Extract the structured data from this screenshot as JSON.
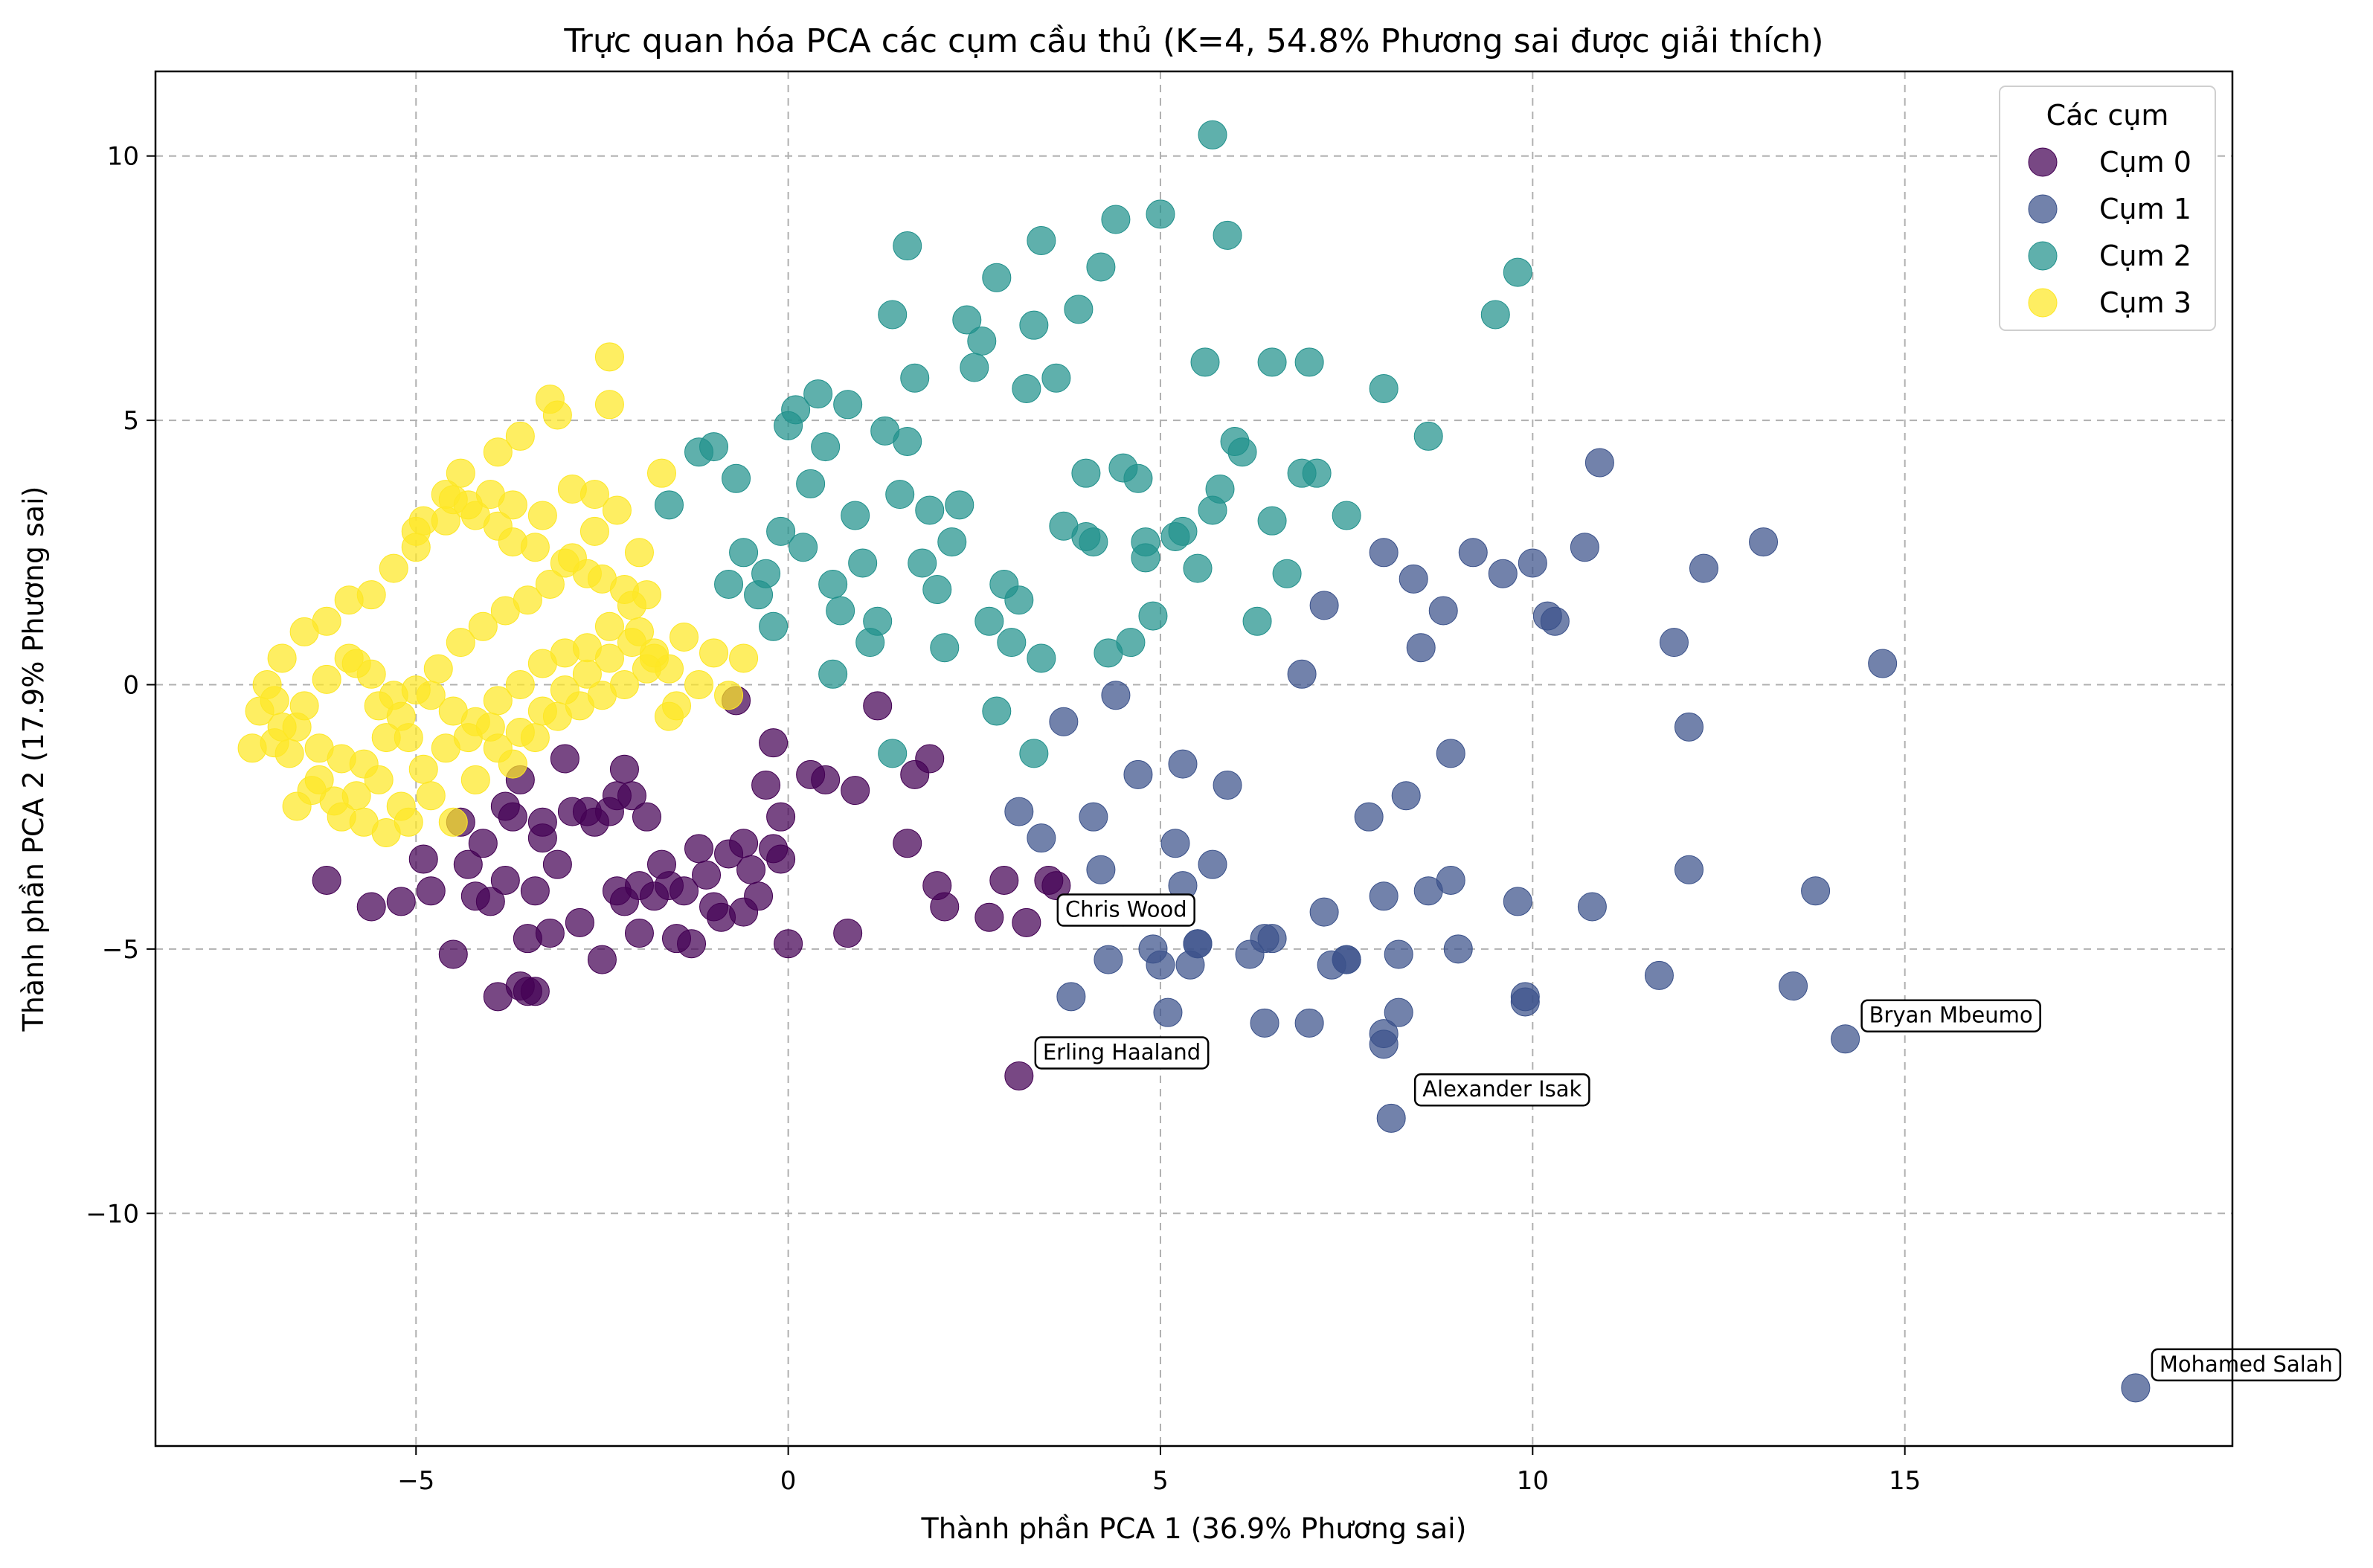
{
  "chart_data": {
    "type": "scatter",
    "title": "Trực quan hóa PCA các cụm cầu thủ (K=4, 54.8% Phương sai được giải thích)",
    "xlabel": "Thành phần PCA 1 (36.9% Phương sai)",
    "ylabel": "Thành phần PCA 2 (17.9% Phương sai)",
    "xlim": [
      -8.5,
      19.4
    ],
    "ylim": [
      -14.4,
      11.6
    ],
    "xticks": [
      -5,
      0,
      5,
      10,
      15
    ],
    "yticks": [
      -10,
      -5,
      0,
      5,
      10
    ],
    "xtick_labels": [
      "−5",
      "0",
      "5",
      "10",
      "15"
    ],
    "ytick_labels": [
      "−10",
      "−5",
      "0",
      "5",
      "10"
    ],
    "grid": true,
    "legend": {
      "title": "Các cụm",
      "placement": "top-right"
    },
    "series": [
      {
        "name": "Cụm 0",
        "color": "#440154",
        "x": [
          -6.2,
          -5.6,
          -5.2,
          -4.9,
          -4.8,
          -4.5,
          -4.4,
          -4.3,
          -4.2,
          -4.1,
          -4.0,
          -3.9,
          -3.8,
          -3.8,
          -3.7,
          -3.6,
          -3.5,
          -3.5,
          -3.4,
          -3.3,
          -3.3,
          -3.2,
          -3.1,
          -3.0,
          -2.9,
          -2.8,
          -2.7,
          -2.6,
          -2.5,
          -2.4,
          -2.3,
          -2.2,
          -2.2,
          -2.1,
          -2.0,
          -2.0,
          -1.9,
          -1.8,
          -1.7,
          -1.6,
          -1.5,
          -1.4,
          -1.3,
          -1.2,
          -1.1,
          -1.0,
          -0.9,
          -0.8,
          -0.7,
          -0.6,
          -0.5,
          -0.4,
          -0.3,
          -0.2,
          -0.2,
          -0.1,
          -0.1,
          0.0,
          0.3,
          0.5,
          0.8,
          0.9,
          1.2,
          1.6,
          1.7,
          1.9,
          2.0,
          2.1,
          2.7,
          2.9,
          3.2,
          3.5,
          3.6,
          3.1,
          -3.6,
          -3.4,
          -0.6,
          -2.3
        ],
        "y": [
          -3.7,
          -4.2,
          -4.1,
          -3.3,
          -3.9,
          -5.1,
          -2.6,
          -3.4,
          -4.0,
          -3.0,
          -4.1,
          -5.9,
          -3.7,
          -2.3,
          -2.5,
          -5.7,
          -5.8,
          -4.8,
          -3.9,
          -2.6,
          -2.9,
          -4.7,
          -3.4,
          -1.4,
          -2.4,
          -4.5,
          -2.4,
          -2.6,
          -5.2,
          -2.4,
          -3.9,
          -1.6,
          -4.1,
          -2.1,
          -3.8,
          -4.7,
          -2.5,
          -4.0,
          -3.4,
          -3.8,
          -4.8,
          -3.9,
          -4.9,
          -3.1,
          -3.6,
          -4.2,
          -4.4,
          -3.2,
          -0.3,
          -4.3,
          -3.5,
          -4.0,
          -1.9,
          -1.1,
          -3.1,
          -3.3,
          -2.5,
          -4.9,
          -1.7,
          -1.8,
          -4.7,
          -2.0,
          -0.4,
          -3.0,
          -1.7,
          -1.4,
          -3.8,
          -4.2,
          -4.4,
          -3.7,
          -4.5,
          -3.7,
          -3.8,
          -7.4,
          -1.8,
          -5.8,
          -3.0,
          -2.1
        ]
      },
      {
        "name": "Cụm 1",
        "color": "#3b528b",
        "x": [
          18.1,
          14.2,
          13.8,
          13.5,
          11.7,
          12.1,
          12.1,
          11.9,
          12.3,
          13.1,
          14.7,
          10.9,
          10.7,
          10.3,
          10.2,
          10.0,
          9.9,
          9.8,
          9.6,
          9.0,
          8.9,
          8.9,
          8.8,
          8.6,
          8.5,
          8.4,
          8.3,
          8.2,
          8.1,
          8.0,
          8.0,
          8.0,
          7.8,
          7.5,
          7.3,
          7.2,
          7.2,
          7.0,
          6.9,
          6.5,
          6.4,
          6.2,
          5.9,
          5.7,
          5.5,
          5.4,
          5.3,
          5.3,
          5.2,
          5.1,
          5.0,
          4.9,
          4.7,
          4.5,
          4.4,
          4.3,
          4.2,
          4.1,
          3.8,
          3.7,
          3.4,
          3.1,
          9.2,
          10.8,
          8.0,
          9.9,
          6.4,
          8.2,
          7.5,
          5.5
        ],
        "y": [
          -13.3,
          -6.7,
          -3.9,
          -5.7,
          -5.5,
          -3.5,
          -0.8,
          0.8,
          2.2,
          2.7,
          0.4,
          4.2,
          2.6,
          1.2,
          1.3,
          2.3,
          -5.9,
          -4.1,
          2.1,
          -5.0,
          -3.7,
          -1.3,
          1.4,
          -3.9,
          0.7,
          2.0,
          -2.1,
          -6.2,
          -8.2,
          -4.0,
          2.5,
          -6.6,
          -2.5,
          -5.2,
          -5.3,
          1.5,
          -4.3,
          -6.4,
          0.2,
          -4.8,
          -6.4,
          -5.1,
          -1.9,
          -3.4,
          -4.9,
          -5.3,
          -3.8,
          -1.5,
          -3.0,
          -6.2,
          -5.3,
          -5.0,
          -1.7,
          -4.3,
          -0.2,
          -5.2,
          -3.5,
          -2.5,
          -5.9,
          -0.7,
          -2.9,
          -2.4,
          2.5,
          -4.2,
          -6.8,
          -6.0,
          -4.8,
          -5.1,
          -5.2,
          -4.9
        ]
      },
      {
        "name": "Cụm 2",
        "color": "#21918c",
        "x": [
          5.7,
          9.8,
          9.5,
          7.0,
          6.5,
          6.0,
          6.1,
          8.0,
          8.6,
          7.1,
          7.5,
          6.5,
          6.3,
          5.8,
          5.5,
          5.3,
          5.6,
          5.0,
          4.9,
          4.8,
          4.7,
          4.5,
          4.4,
          4.2,
          4.1,
          4.0,
          3.9,
          3.7,
          3.6,
          3.4,
          3.3,
          3.2,
          3.1,
          3.0,
          2.9,
          2.8,
          2.7,
          2.6,
          2.5,
          2.4,
          2.3,
          2.2,
          2.1,
          2.0,
          1.9,
          1.8,
          1.7,
          1.6,
          1.5,
          1.4,
          1.3,
          1.2,
          1.1,
          1.0,
          0.9,
          0.8,
          0.7,
          0.6,
          0.5,
          0.4,
          0.3,
          0.2,
          0.1,
          0.0,
          -0.1,
          -0.2,
          -0.3,
          -0.4,
          -0.6,
          -0.7,
          -0.8,
          -1.0,
          -1.2,
          -1.6,
          5.9,
          4.6,
          3.4,
          1.6,
          1.4,
          0.6,
          3.3,
          2.8,
          4.0,
          4.8,
          5.2,
          5.7,
          6.7,
          6.9,
          4.3
        ],
        "y": [
          10.4,
          7.8,
          7.0,
          6.1,
          6.1,
          4.6,
          4.4,
          5.6,
          4.7,
          4.0,
          3.2,
          3.1,
          1.2,
          3.7,
          2.2,
          2.9,
          6.1,
          8.9,
          1.3,
          2.7,
          3.9,
          4.1,
          8.8,
          7.9,
          2.7,
          4.0,
          7.1,
          3.0,
          5.8,
          8.4,
          6.8,
          5.6,
          1.6,
          0.8,
          1.9,
          7.7,
          1.2,
          6.5,
          6.0,
          6.9,
          3.4,
          2.7,
          0.7,
          1.8,
          3.3,
          2.3,
          5.8,
          4.6,
          3.6,
          7.0,
          4.8,
          1.2,
          0.8,
          2.3,
          3.2,
          5.3,
          1.4,
          1.9,
          4.5,
          5.5,
          3.8,
          2.6,
          5.2,
          4.9,
          2.9,
          1.1,
          2.1,
          1.7,
          2.5,
          3.9,
          1.9,
          4.5,
          4.4,
          3.4,
          8.5,
          0.8,
          0.5,
          8.3,
          -1.3,
          0.2,
          -1.3,
          -0.5,
          2.8,
          2.4,
          2.8,
          3.3,
          2.1,
          4.0,
          0.6
        ]
      },
      {
        "name": "Cụm 3",
        "color": "#fde725",
        "x": [
          -2.4,
          -2.4,
          -3.2,
          -3.1,
          -3.6,
          -3.9,
          -4.4,
          -4.6,
          -4.9,
          -5.0,
          -4.5,
          -4.2,
          -3.9,
          -3.7,
          -3.4,
          -3.0,
          -2.7,
          -2.5,
          -2.2,
          -2.0,
          -1.9,
          -1.8,
          -1.6,
          -1.4,
          -1.2,
          -1.0,
          -0.8,
          -0.6,
          -2.6,
          -2.9,
          -3.3,
          -3.7,
          -4.0,
          -4.3,
          -4.6,
          -5.0,
          -5.3,
          -5.6,
          -5.9,
          -6.2,
          -6.5,
          -6.8,
          -7.0,
          -7.1,
          -7.2,
          -6.9,
          -6.6,
          -6.3,
          -6.0,
          -5.7,
          -5.4,
          -5.1,
          -4.8,
          -4.5,
          -4.2,
          -3.9,
          -3.6,
          -3.3,
          -3.0,
          -2.7,
          -2.4,
          -2.1,
          -1.8,
          -1.5,
          -5.5,
          -5.8,
          -6.1,
          -6.4,
          -6.7,
          -5.2,
          -4.9,
          -4.6,
          -4.3,
          -4.0,
          -3.7,
          -3.4,
          -3.1,
          -2.8,
          -2.5,
          -2.2,
          -1.9,
          -1.6,
          -5.3,
          -5.6,
          -5.9,
          -6.2,
          -6.5,
          -6.8,
          -5.0,
          -4.7,
          -4.4,
          -4.1,
          -3.8,
          -3.5,
          -3.2,
          -2.9,
          -2.6,
          -2.3,
          -2.0,
          -1.7,
          -5.7,
          -6.0,
          -6.3,
          -5.4,
          -5.1,
          -4.8,
          -4.5,
          -4.2,
          -3.9,
          -3.6,
          -3.3,
          -3.0,
          -2.7,
          -2.4,
          -2.1,
          -6.6,
          -6.9,
          -5.8,
          -5.5,
          -5.2
        ],
        "y": [
          6.2,
          5.3,
          5.4,
          5.1,
          4.7,
          4.4,
          4.0,
          3.6,
          3.1,
          2.9,
          3.5,
          3.2,
          3.0,
          2.7,
          2.6,
          2.3,
          2.1,
          2.0,
          1.8,
          1.0,
          1.7,
          0.5,
          0.3,
          0.9,
          0.0,
          0.6,
          -0.2,
          0.5,
          3.6,
          3.7,
          3.2,
          3.4,
          3.6,
          3.4,
          3.1,
          2.6,
          2.2,
          1.7,
          1.6,
          1.2,
          1.0,
          0.5,
          0.0,
          -0.5,
          -1.2,
          -1.1,
          -0.8,
          -1.2,
          -1.4,
          -1.5,
          -1.0,
          -1.0,
          -0.2,
          -0.5,
          -0.7,
          -0.3,
          0.0,
          0.4,
          0.6,
          0.7,
          1.1,
          1.5,
          0.6,
          -0.4,
          -1.8,
          -2.1,
          -2.2,
          -2.0,
          -1.3,
          -2.3,
          -1.6,
          -1.2,
          -1.0,
          -0.8,
          -1.5,
          -1.0,
          -0.6,
          -0.4,
          -0.2,
          0.0,
          0.3,
          -0.6,
          -0.2,
          0.2,
          0.5,
          0.1,
          -0.4,
          -0.8,
          -0.1,
          0.3,
          0.8,
          1.1,
          1.4,
          1.6,
          1.9,
          2.4,
          2.9,
          3.3,
          2.5,
          4.0,
          -2.6,
          -2.5,
          -1.8,
          -2.8,
          -2.6,
          -2.1,
          -2.6,
          -1.8,
          -1.2,
          -0.9,
          -0.5,
          -0.1,
          0.2,
          0.5,
          0.8,
          -2.3,
          -0.3,
          0.4,
          -0.4,
          -0.6
        ]
      }
    ],
    "annotations": [
      {
        "text": "Mohamed Salah",
        "x": 18.1,
        "y": -13.3
      },
      {
        "text": "Bryan Mbeumo",
        "x": 14.2,
        "y": -6.7
      },
      {
        "text": "Alexander Isak",
        "x": 8.2,
        "y": -8.1
      },
      {
        "text": "Erling Haaland",
        "x": 3.1,
        "y": -7.4
      },
      {
        "text": "Chris Wood",
        "x": 3.4,
        "y": -4.7
      }
    ]
  }
}
